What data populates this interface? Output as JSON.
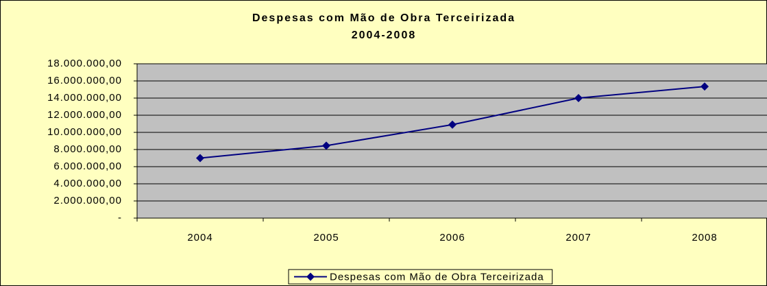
{
  "chart_data": {
    "type": "line",
    "title": "Despesas com Mão de Obra Terceirizada",
    "subtitle": "2004-2008",
    "categories": [
      "2004",
      "2005",
      "2006",
      "2007",
      "2008"
    ],
    "series": [
      {
        "name": "Despesas com Mão de Obra Terceirizada",
        "color": "#000080",
        "values": [
          7000000,
          8450000,
          10900000,
          14000000,
          15350000
        ]
      }
    ],
    "ylim": [
      0,
      18000000
    ],
    "yticks": [
      {
        "value": 0,
        "label": "-"
      },
      {
        "value": 2000000,
        "label": "2.000.000,00"
      },
      {
        "value": 4000000,
        "label": "4.000.000,00"
      },
      {
        "value": 6000000,
        "label": "6.000.000,00"
      },
      {
        "value": 8000000,
        "label": "8.000.000,00"
      },
      {
        "value": 10000000,
        "label": "10.000.000,00"
      },
      {
        "value": 12000000,
        "label": "12.000.000,00"
      },
      {
        "value": 14000000,
        "label": "14.000.000,00"
      },
      {
        "value": 16000000,
        "label": "16.000.000,00"
      },
      {
        "value": 18000000,
        "label": "18.000.000,00"
      }
    ],
    "grid": true,
    "legend": "bottom",
    "plot_background": "#c0c0c0",
    "background": "#ffffc0"
  }
}
